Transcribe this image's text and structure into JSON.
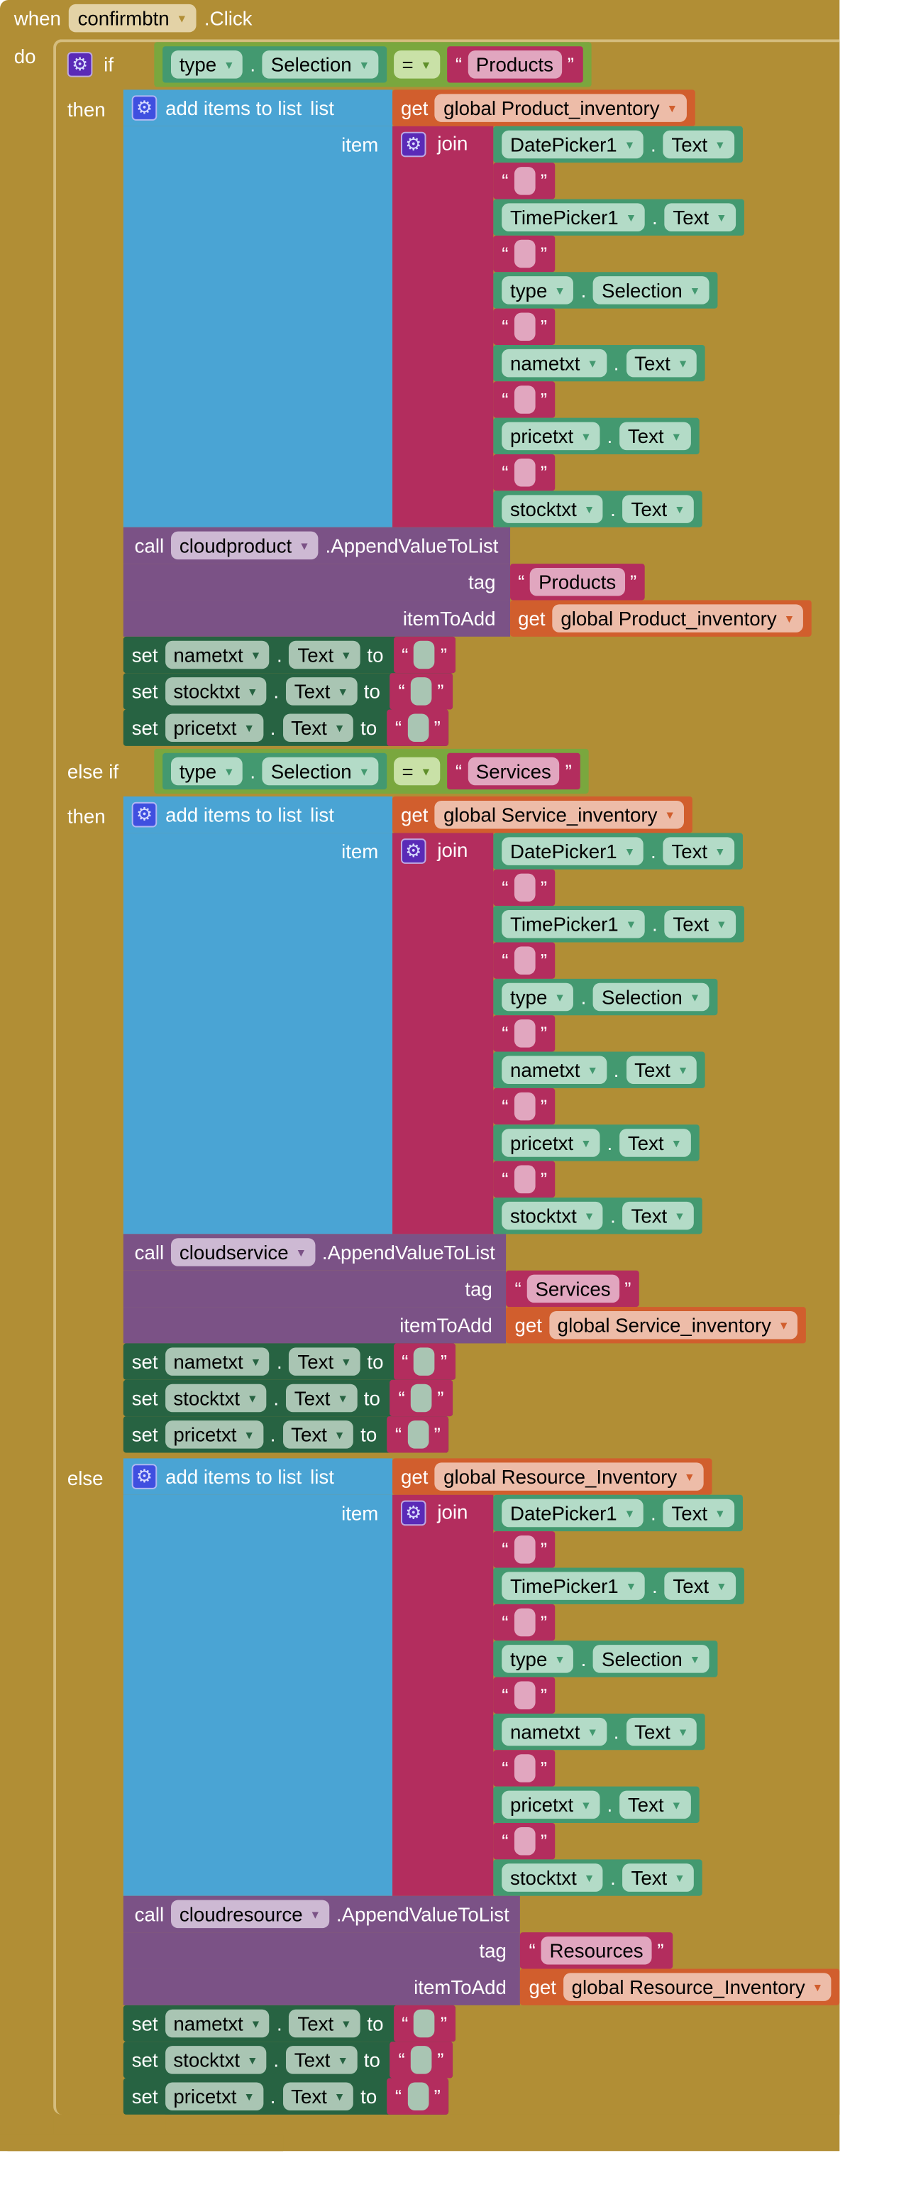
{
  "colors": {
    "event": "#b18e35",
    "control": "#b18e35",
    "logic_compare": "#7aa73e",
    "component_getter": "#439970",
    "text": "#b32d5e",
    "variable_get": "#d15e2d",
    "list": "#4aa4d4",
    "component_call": "#7b5286",
    "component_set": "#276342"
  },
  "labels": {
    "when": "when",
    "do": "do",
    "if": "if",
    "else_if": "else if",
    "then": "then",
    "else": "else",
    "add_items": "add items to list",
    "list": "list",
    "item": "item",
    "get": "get",
    "join": "join",
    "call": "call",
    "tag": "tag",
    "item_to_add": "itemToAdd",
    "set": "set",
    "to": "to",
    "dot": ".",
    "open_quote": "“",
    "close_quote": "”"
  },
  "event": {
    "component": "confirmbtn",
    "event_name": ".Click"
  },
  "branches": [
    {
      "kind": "if",
      "condition": {
        "component": "type",
        "property": "Selection",
        "operator": "=",
        "value": "Products"
      },
      "list_var": "global Product_inventory",
      "join_items": [
        {
          "component": "DatePicker1",
          "property": "Text"
        },
        {
          "text": ""
        },
        {
          "component": "TimePicker1",
          "property": "Text"
        },
        {
          "text": ""
        },
        {
          "component": "type",
          "property": "Selection"
        },
        {
          "text": ""
        },
        {
          "component": "nametxt",
          "property": "Text"
        },
        {
          "text": ""
        },
        {
          "component": "pricetxt",
          "property": "Text"
        },
        {
          "text": ""
        },
        {
          "component": "stocktxt",
          "property": "Text"
        }
      ],
      "call": {
        "component": "cloudproduct",
        "method": ".AppendValueToList",
        "tag": "Products",
        "item_var": "global Product_inventory"
      },
      "sets": [
        {
          "component": "nametxt",
          "property": "Text",
          "value": ""
        },
        {
          "component": "stocktxt",
          "property": "Text",
          "value": ""
        },
        {
          "component": "pricetxt",
          "property": "Text",
          "value": ""
        }
      ]
    },
    {
      "kind": "else_if",
      "condition": {
        "component": "type",
        "property": "Selection",
        "operator": "=",
        "value": "Services"
      },
      "list_var": "global Service_inventory",
      "join_items": [
        {
          "component": "DatePicker1",
          "property": "Text"
        },
        {
          "text": ""
        },
        {
          "component": "TimePicker1",
          "property": "Text"
        },
        {
          "text": ""
        },
        {
          "component": "type",
          "property": "Selection"
        },
        {
          "text": ""
        },
        {
          "component": "nametxt",
          "property": "Text"
        },
        {
          "text": ""
        },
        {
          "component": "pricetxt",
          "property": "Text"
        },
        {
          "text": ""
        },
        {
          "component": "stocktxt",
          "property": "Text"
        }
      ],
      "call": {
        "component": "cloudservice",
        "method": ".AppendValueToList",
        "tag": "Services",
        "item_var": "global Service_inventory"
      },
      "sets": [
        {
          "component": "nametxt",
          "property": "Text",
          "value": ""
        },
        {
          "component": "stocktxt",
          "property": "Text",
          "value": ""
        },
        {
          "component": "pricetxt",
          "property": "Text",
          "value": ""
        }
      ]
    },
    {
      "kind": "else",
      "list_var": "global Resource_Inventory",
      "join_items": [
        {
          "component": "DatePicker1",
          "property": "Text"
        },
        {
          "text": ""
        },
        {
          "component": "TimePicker1",
          "property": "Text"
        },
        {
          "text": ""
        },
        {
          "component": "type",
          "property": "Selection"
        },
        {
          "text": ""
        },
        {
          "component": "nametxt",
          "property": "Text"
        },
        {
          "text": ""
        },
        {
          "component": "pricetxt",
          "property": "Text"
        },
        {
          "text": ""
        },
        {
          "component": "stocktxt",
          "property": "Text"
        }
      ],
      "call": {
        "component": "cloudresource",
        "method": ".AppendValueToList",
        "tag": "Resources",
        "item_var": "global Resource_Inventory"
      },
      "sets": [
        {
          "component": "nametxt",
          "property": "Text",
          "value": ""
        },
        {
          "component": "stocktxt",
          "property": "Text",
          "value": ""
        },
        {
          "component": "pricetxt",
          "property": "Text",
          "value": ""
        }
      ]
    }
  ]
}
